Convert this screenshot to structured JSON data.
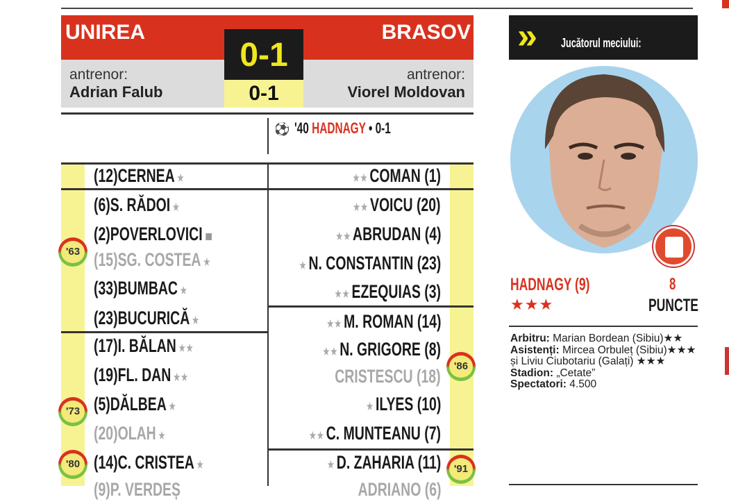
{
  "match": {
    "home_team": "UNIREA",
    "away_team": "BRASOV",
    "score": "0-1",
    "halftime_score": "0-1",
    "coach_label": "antrenor:",
    "home_coach": "Adrian Falub",
    "away_coach": "Viorel Moldovan",
    "goal": {
      "minute": "'40",
      "scorer": "HADNAGY",
      "score": "• 0-1"
    }
  },
  "home_lineup": [
    {
      "num": "(12)",
      "name": "CERNEA",
      "stars": "★"
    },
    {
      "num": "(6)",
      "name": "S. RĂDOI",
      "stars": "★"
    },
    {
      "num": "(2)",
      "name": "POVERLOVICI",
      "stars": "",
      "card": "yellow-card"
    },
    {
      "num": "(15)",
      "name": "SG. COSTEA",
      "stars": "★",
      "sub": true
    },
    {
      "num": "(33)",
      "name": "BUMBAC",
      "stars": "★"
    },
    {
      "num": "(23)",
      "name": "BUCURICĂ",
      "stars": "★"
    },
    {
      "num": "(17)",
      "name": "I. BĂLAN",
      "stars": "★★"
    },
    {
      "num": "(19)",
      "name": "FL. DAN",
      "stars": "★★"
    },
    {
      "num": "(5)",
      "name": "DĂLBEA",
      "stars": "★"
    },
    {
      "num": "(20)",
      "name": "OLAH",
      "stars": "★",
      "sub": true
    },
    {
      "num": "(14)",
      "name": "C. CRISTEA",
      "stars": "★"
    },
    {
      "num": "(9)",
      "name": "P. VERDEȘ",
      "stars": "",
      "sub": true
    }
  ],
  "away_lineup": [
    {
      "num": "(1)",
      "name": "COMAN",
      "stars": "★★"
    },
    {
      "num": "(20)",
      "name": "VOICU",
      "stars": "★★"
    },
    {
      "num": "(4)",
      "name": "ABRUDAN",
      "stars": "★★"
    },
    {
      "num": "(23)",
      "name": "N. CONSTANTIN",
      "stars": "★"
    },
    {
      "num": "(3)",
      "name": "EZEQUIAS",
      "stars": "★★"
    },
    {
      "num": "(14)",
      "name": "M. ROMAN",
      "stars": "★★"
    },
    {
      "num": "(8)",
      "name": "N. GRIGORE",
      "stars": "★★"
    },
    {
      "num": "(18)",
      "name": "CRISTESCU",
      "stars": "",
      "sub": true
    },
    {
      "num": "(10)",
      "name": "ILYES",
      "stars": "★"
    },
    {
      "num": "(7)",
      "name": "C. MUNTEANU",
      "stars": "★★"
    },
    {
      "num": "(11)",
      "name": "D. ZAHARIA",
      "stars": "★"
    },
    {
      "num": "(6)",
      "name": "ADRIANO",
      "stars": "",
      "sub": true
    }
  ],
  "substitution_minutes": {
    "home": [
      "'63",
      "'73",
      "'80"
    ],
    "away": [
      "'86",
      "'91"
    ]
  },
  "player_of_match": {
    "label": "Jucătorul meciului:",
    "name": "HADNAGY (9)",
    "stars": "★★★",
    "points": "8",
    "points_label": "PUNCTE"
  },
  "officials": {
    "referee_label": "Arbitru:",
    "referee": "Marian Bordean (Sibiu)★★",
    "assistants_label": "Asistenți:",
    "assistants": "Mircea Orbuleț (Sibiu)★★★ și Liviu Ciubotariu (Galați) ★★★",
    "stadium_label": "Stadion:",
    "stadium": "„Cetate”",
    "spectators_label": "Spectatori:",
    "spectators": "4.500"
  },
  "colors": {
    "red": "#d8321e",
    "yellow": "#f0e61e",
    "pale_yellow": "#f7f392",
    "black": "#1b1b1b",
    "photo_bg": "#a9d4ee"
  }
}
